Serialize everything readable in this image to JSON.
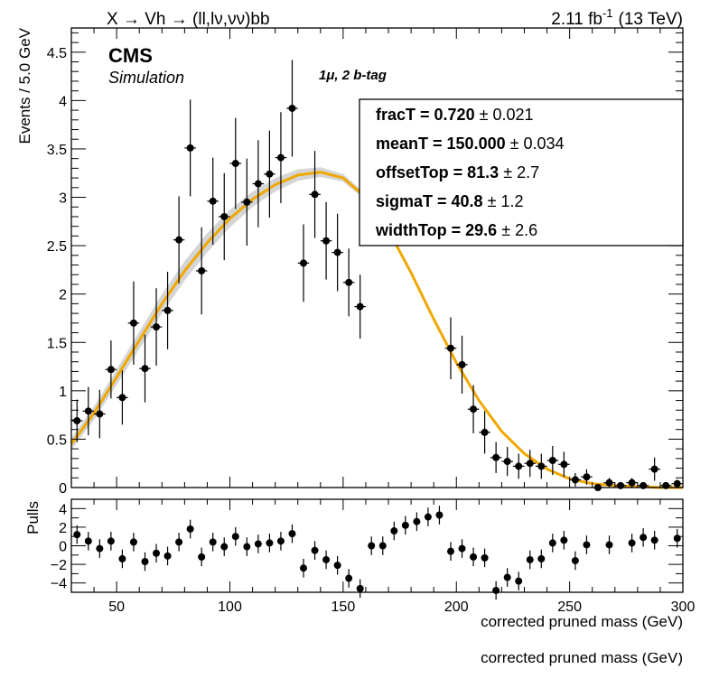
{
  "header": {
    "process": "X → Vh → (ll,lν,νν)bb",
    "lumi_value": "2.11 fb",
    "lumi_exp": "-1",
    "energy": "(13 TeV)"
  },
  "labels": {
    "cms": "CMS",
    "simulation": "Simulation",
    "category": "1μ, 2 b-tag",
    "xlabel": "corrected pruned mass (GeV)",
    "ylabel": "Events / 5.0 GeV",
    "pulls_ylabel": "Pulls",
    "ghost_xlabel": "corrected pruned mass (GeV)"
  },
  "fit_box": [
    {
      "name": "fracT =",
      "value": "0.720",
      "error": "± 0.021"
    },
    {
      "name": "meanT =",
      "value": "150.000",
      "error": "± 0.034"
    },
    {
      "name": "offsetTop =",
      "value": "81.3",
      "error": "± 2.7"
    },
    {
      "name": "sigmaT =",
      "value": "40.8",
      "error": "± 1.2"
    },
    {
      "name": "widthTop =",
      "value": "29.6",
      "error": "± 2.6"
    }
  ],
  "colors": {
    "fit_line": "#f0a800",
    "band": "#888888",
    "points": "#000000"
  },
  "chart_data": [
    {
      "type": "scatter",
      "xlim": [
        30,
        300
      ],
      "ylim": [
        0,
        4.75
      ],
      "xticks": [
        50,
        100,
        150,
        200,
        250,
        300
      ],
      "yticks": [
        0,
        0.5,
        1,
        1.5,
        2,
        2.5,
        3,
        3.5,
        4,
        4.5
      ],
      "ytick_labels": [
        "0",
        "0.5",
        "1",
        "1.5",
        "2",
        "2.5",
        "3",
        "3.5",
        "4",
        "4.5"
      ],
      "xbin_width": 5,
      "points": [
        {
          "x": 32.5,
          "y": 0.69,
          "err": 0.22
        },
        {
          "x": 37.5,
          "y": 0.79,
          "err": 0.25
        },
        {
          "x": 42.5,
          "y": 0.76,
          "err": 0.25
        },
        {
          "x": 47.5,
          "y": 1.22,
          "err": 0.3
        },
        {
          "x": 52.5,
          "y": 0.93,
          "err": 0.28
        },
        {
          "x": 57.5,
          "y": 1.7,
          "err": 0.43
        },
        {
          "x": 62.5,
          "y": 1.23,
          "err": 0.35
        },
        {
          "x": 67.5,
          "y": 1.66,
          "err": 0.4
        },
        {
          "x": 72.5,
          "y": 1.83,
          "err": 0.4
        },
        {
          "x": 77.5,
          "y": 2.56,
          "err": 0.45
        },
        {
          "x": 82.5,
          "y": 3.51,
          "err": 0.5
        },
        {
          "x": 87.5,
          "y": 2.24,
          "err": 0.45
        },
        {
          "x": 92.5,
          "y": 2.96,
          "err": 0.45
        },
        {
          "x": 97.5,
          "y": 2.8,
          "err": 0.45
        },
        {
          "x": 102.5,
          "y": 3.35,
          "err": 0.47
        },
        {
          "x": 107.5,
          "y": 2.95,
          "err": 0.45
        },
        {
          "x": 112.5,
          "y": 3.14,
          "err": 0.45
        },
        {
          "x": 117.5,
          "y": 3.24,
          "err": 0.45
        },
        {
          "x": 122.5,
          "y": 3.41,
          "err": 0.47
        },
        {
          "x": 127.5,
          "y": 3.92,
          "err": 0.5
        },
        {
          "x": 132.5,
          "y": 2.32,
          "err": 0.4
        },
        {
          "x": 137.5,
          "y": 3.03,
          "err": 0.45
        },
        {
          "x": 142.5,
          "y": 2.55,
          "err": 0.4
        },
        {
          "x": 147.5,
          "y": 2.43,
          "err": 0.4
        },
        {
          "x": 152.5,
          "y": 2.12,
          "err": 0.35
        },
        {
          "x": 157.5,
          "y": 1.87,
          "err": 0.33
        },
        {
          "x": 197.5,
          "y": 1.44,
          "err": 0.32
        },
        {
          "x": 202.5,
          "y": 1.27,
          "err": 0.3
        },
        {
          "x": 207.5,
          "y": 0.81,
          "err": 0.25
        },
        {
          "x": 212.5,
          "y": 0.57,
          "err": 0.22
        },
        {
          "x": 217.5,
          "y": 0.31,
          "err": 0.16
        },
        {
          "x": 222.5,
          "y": 0.27,
          "err": 0.15
        },
        {
          "x": 227.5,
          "y": 0.22,
          "err": 0.13
        },
        {
          "x": 232.5,
          "y": 0.25,
          "err": 0.14
        },
        {
          "x": 237.5,
          "y": 0.22,
          "err": 0.13
        },
        {
          "x": 242.5,
          "y": 0.28,
          "err": 0.15
        },
        {
          "x": 247.5,
          "y": 0.24,
          "err": 0.13
        },
        {
          "x": 252.5,
          "y": 0.08,
          "err": 0.07
        },
        {
          "x": 257.5,
          "y": 0.11,
          "err": 0.08
        },
        {
          "x": 262.5,
          "y": 0.0,
          "err": 0.03
        },
        {
          "x": 267.5,
          "y": 0.05,
          "err": 0.05
        },
        {
          "x": 272.5,
          "y": 0.02,
          "err": 0.03
        },
        {
          "x": 277.5,
          "y": 0.05,
          "err": 0.05
        },
        {
          "x": 282.5,
          "y": 0.02,
          "err": 0.03
        },
        {
          "x": 287.5,
          "y": 0.19,
          "err": 0.12
        },
        {
          "x": 292.5,
          "y": 0.02,
          "err": 0.03
        },
        {
          "x": 297.5,
          "y": 0.04,
          "err": 0.04
        }
      ],
      "fit_curve": {
        "x": [
          30,
          40,
          50,
          60,
          70,
          80,
          90,
          100,
          110,
          120,
          130,
          140,
          150,
          160,
          170,
          180,
          190,
          200,
          210,
          220,
          230,
          240,
          250,
          260,
          270,
          280,
          290,
          300
        ],
        "y": [
          0.45,
          0.77,
          1.14,
          1.52,
          1.9,
          2.24,
          2.53,
          2.78,
          2.98,
          3.13,
          3.23,
          3.26,
          3.2,
          3.0,
          2.66,
          2.22,
          1.74,
          1.29,
          0.9,
          0.58,
          0.35,
          0.19,
          0.09,
          0.04,
          0.02,
          0.01,
          0.0,
          0.0
        ]
      },
      "band_halfwidth": [
        0.06,
        0.07,
        0.08,
        0.09,
        0.1,
        0.1,
        0.1,
        0.09,
        0.08,
        0.07,
        0.06,
        0.05,
        0.04,
        0.03,
        0.02,
        0.02,
        0.01,
        0.01,
        0.01,
        0.01,
        0.01,
        0.01,
        0.01,
        0.01,
        0.01,
        0.0,
        0.0,
        0.0
      ]
    },
    {
      "type": "scatter",
      "xlim": [
        30,
        300
      ],
      "ylim": [
        -5,
        5
      ],
      "xticks": [
        50,
        100,
        150,
        200,
        250,
        300
      ],
      "yticks": [
        -4,
        -2,
        0,
        2,
        4
      ],
      "ytick_labels": [
        "−4",
        "−2",
        "0",
        "2",
        "4"
      ],
      "xtick_labels": [
        "50",
        "100",
        "150",
        "200",
        "250",
        "300"
      ],
      "points": [
        {
          "x": 32.5,
          "y": 1.2
        },
        {
          "x": 37.5,
          "y": 0.5
        },
        {
          "x": 42.5,
          "y": -0.3
        },
        {
          "x": 47.5,
          "y": 0.5
        },
        {
          "x": 52.5,
          "y": -1.4
        },
        {
          "x": 57.5,
          "y": 0.4
        },
        {
          "x": 62.5,
          "y": -1.7
        },
        {
          "x": 67.5,
          "y": -0.8
        },
        {
          "x": 72.5,
          "y": -1.1
        },
        {
          "x": 77.5,
          "y": 0.4
        },
        {
          "x": 82.5,
          "y": 1.8
        },
        {
          "x": 87.5,
          "y": -1.2
        },
        {
          "x": 92.5,
          "y": 0.4
        },
        {
          "x": 97.5,
          "y": -0.1
        },
        {
          "x": 102.5,
          "y": 1.0
        },
        {
          "x": 107.5,
          "y": -0.1
        },
        {
          "x": 112.5,
          "y": 0.2
        },
        {
          "x": 117.5,
          "y": 0.3
        },
        {
          "x": 122.5,
          "y": 0.5
        },
        {
          "x": 127.5,
          "y": 1.3
        },
        {
          "x": 132.5,
          "y": -2.4
        },
        {
          "x": 137.5,
          "y": -0.5
        },
        {
          "x": 142.5,
          "y": -1.5
        },
        {
          "x": 147.5,
          "y": -2.1
        },
        {
          "x": 152.5,
          "y": -3.5
        },
        {
          "x": 157.5,
          "y": -4.6
        },
        {
          "x": 162.5,
          "y": 0.0
        },
        {
          "x": 167.5,
          "y": 0.0
        },
        {
          "x": 172.5,
          "y": 1.6
        },
        {
          "x": 177.5,
          "y": 2.2
        },
        {
          "x": 182.5,
          "y": 2.6
        },
        {
          "x": 187.5,
          "y": 3.1
        },
        {
          "x": 192.5,
          "y": 3.3
        },
        {
          "x": 197.5,
          "y": -0.6
        },
        {
          "x": 202.5,
          "y": -0.3
        },
        {
          "x": 207.5,
          "y": -1.2
        },
        {
          "x": 212.5,
          "y": -1.3
        },
        {
          "x": 217.5,
          "y": -4.8
        },
        {
          "x": 222.5,
          "y": -3.4
        },
        {
          "x": 227.5,
          "y": -3.8
        },
        {
          "x": 232.5,
          "y": -1.5
        },
        {
          "x": 237.5,
          "y": -1.4
        },
        {
          "x": 242.5,
          "y": 0.3
        },
        {
          "x": 247.5,
          "y": 0.6
        },
        {
          "x": 252.5,
          "y": -1.6
        },
        {
          "x": 257.5,
          "y": 0.1
        },
        {
          "x": 267.5,
          "y": 0.1
        },
        {
          "x": 277.5,
          "y": 0.3
        },
        {
          "x": 282.5,
          "y": 0.9
        },
        {
          "x": 287.5,
          "y": 0.6
        },
        {
          "x": 297.5,
          "y": 0.8
        }
      ]
    }
  ]
}
